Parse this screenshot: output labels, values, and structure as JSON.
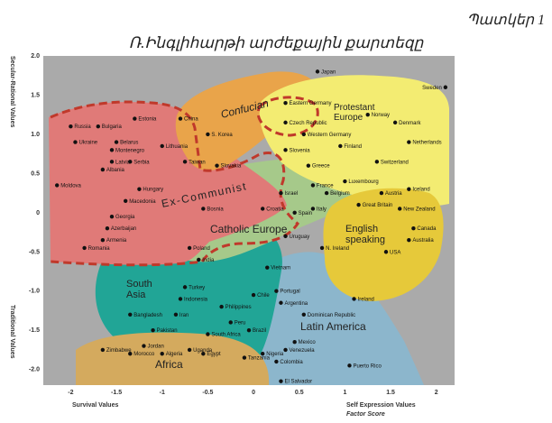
{
  "figure_label": "Պատկեր 1",
  "title": "Ռ.Ինգլիհարթի արժեքային քարտեզը",
  "chart_data": {
    "type": "scatter",
    "xlabel": "Survival Values",
    "xlabel_right": "Self Expression Values",
    "xlabel_right_sub": "Factor Score",
    "ylabel_top": "Secular-Rational Values",
    "ylabel_bottom": "Traditional Values",
    "xlim": [
      -2.3,
      2.2
    ],
    "ylim": [
      -2.2,
      2.0
    ],
    "x_ticks": [
      "-2",
      "-1.5",
      "-1",
      "-0.5",
      "0",
      "0.5",
      "1",
      "1.5",
      "2"
    ],
    "y_ticks": [
      "2.0",
      "1.5",
      "1.0",
      "0.5",
      "0",
      "-0.5",
      "-1.0",
      "-1.5",
      "-2.0"
    ],
    "zones": [
      {
        "label": "Confucian",
        "color": "#e9a44a"
      },
      {
        "label": "Protestant Europe",
        "color": "#f3ec72"
      },
      {
        "label": "Ex-Communist",
        "color": "#e07a78"
      },
      {
        "label": "Catholic Europe",
        "color": "#a6c98a"
      },
      {
        "label": "English speaking",
        "color": "#e6c93a"
      },
      {
        "label": "South Asia",
        "color": "#21a596"
      },
      {
        "label": "Latin America",
        "color": "#8cb6cc"
      },
      {
        "label": "Africa",
        "color": "#d4aa5e"
      }
    ],
    "points": [
      {
        "label": "Japan",
        "x": 0.7,
        "y": 1.8
      },
      {
        "label": "Sweden",
        "x": 2.1,
        "y": 1.6
      },
      {
        "label": "Russia",
        "x": -2.0,
        "y": 1.1
      },
      {
        "label": "Bulgaria",
        "x": -1.7,
        "y": 1.1
      },
      {
        "label": "Estonia",
        "x": -1.3,
        "y": 1.2
      },
      {
        "label": "China",
        "x": -0.8,
        "y": 1.2
      },
      {
        "label": "Belarus",
        "x": -1.5,
        "y": 0.9
      },
      {
        "label": "Ukraine",
        "x": -1.95,
        "y": 0.9
      },
      {
        "label": "Montenegro",
        "x": -1.55,
        "y": 0.8
      },
      {
        "label": "Latvia",
        "x": -1.55,
        "y": 0.65
      },
      {
        "label": "Albania",
        "x": -1.65,
        "y": 0.55
      },
      {
        "label": "Serbia",
        "x": -1.35,
        "y": 0.65
      },
      {
        "label": "Lithuania",
        "x": -1.0,
        "y": 0.85
      },
      {
        "label": "S. Korea",
        "x": -0.5,
        "y": 1.0
      },
      {
        "label": "Taiwan",
        "x": -0.75,
        "y": 0.65
      },
      {
        "label": "Moldova",
        "x": -2.15,
        "y": 0.35
      },
      {
        "label": "Slovakia",
        "x": -0.4,
        "y": 0.6
      },
      {
        "label": "Hungary",
        "x": -1.25,
        "y": 0.3
      },
      {
        "label": "Macedonia",
        "x": -1.4,
        "y": 0.15
      },
      {
        "label": "Bosnia",
        "x": -0.55,
        "y": 0.05
      },
      {
        "label": "Georgia",
        "x": -1.55,
        "y": -0.05
      },
      {
        "label": "Azerbaijan",
        "x": -1.6,
        "y": -0.2
      },
      {
        "label": "Armenia",
        "x": -1.65,
        "y": -0.35
      },
      {
        "label": "Romania",
        "x": -1.85,
        "y": -0.45
      },
      {
        "label": "Eastern Germany",
        "x": 0.35,
        "y": 1.4
      },
      {
        "label": "Czech Republic",
        "x": 0.35,
        "y": 1.15
      },
      {
        "label": "Western Germany",
        "x": 0.55,
        "y": 1.0
      },
      {
        "label": "Norway",
        "x": 1.25,
        "y": 1.25
      },
      {
        "label": "Denmark",
        "x": 1.55,
        "y": 1.15
      },
      {
        "label": "Netherlands",
        "x": 1.7,
        "y": 0.9
      },
      {
        "label": "Finland",
        "x": 0.95,
        "y": 0.85
      },
      {
        "label": "Slovenia",
        "x": 0.35,
        "y": 0.8
      },
      {
        "label": "Switzerland",
        "x": 1.35,
        "y": 0.65
      },
      {
        "label": "Greece",
        "x": 0.6,
        "y": 0.6
      },
      {
        "label": "France",
        "x": 0.65,
        "y": 0.35
      },
      {
        "label": "Luxembourg",
        "x": 1.0,
        "y": 0.4
      },
      {
        "label": "Belgium",
        "x": 0.8,
        "y": 0.25
      },
      {
        "label": "Austria",
        "x": 1.4,
        "y": 0.25
      },
      {
        "label": "Iceland",
        "x": 1.7,
        "y": 0.3
      },
      {
        "label": "Israel",
        "x": 0.3,
        "y": 0.25
      },
      {
        "label": "Italy",
        "x": 0.65,
        "y": 0.05
      },
      {
        "label": "Croatia",
        "x": 0.1,
        "y": 0.05
      },
      {
        "label": "Spain",
        "x": 0.45,
        "y": 0.0
      },
      {
        "label": "Great Britain",
        "x": 1.15,
        "y": 0.1
      },
      {
        "label": "New Zealand",
        "x": 1.6,
        "y": 0.05
      },
      {
        "label": "Canada",
        "x": 1.75,
        "y": -0.2
      },
      {
        "label": "Australia",
        "x": 1.7,
        "y": -0.35
      },
      {
        "label": "USA",
        "x": 1.45,
        "y": -0.5
      },
      {
        "label": "N. Ireland",
        "x": 0.75,
        "y": -0.45
      },
      {
        "label": "Uruguay",
        "x": 0.35,
        "y": -0.3
      },
      {
        "label": "Poland",
        "x": -0.7,
        "y": -0.45
      },
      {
        "label": "India",
        "x": -0.6,
        "y": -0.6
      },
      {
        "label": "Vietnam",
        "x": 0.15,
        "y": -0.7
      },
      {
        "label": "Ireland",
        "x": 1.1,
        "y": -1.1
      },
      {
        "label": "Turkey",
        "x": -0.75,
        "y": -0.95
      },
      {
        "label": "Indonesia",
        "x": -0.8,
        "y": -1.1
      },
      {
        "label": "Chile",
        "x": 0.0,
        "y": -1.05
      },
      {
        "label": "Portugal",
        "x": 0.25,
        "y": -1.0
      },
      {
        "label": "Argentina",
        "x": 0.3,
        "y": -1.15
      },
      {
        "label": "Philippines",
        "x": -0.35,
        "y": -1.2
      },
      {
        "label": "Bangladesh",
        "x": -1.35,
        "y": -1.3
      },
      {
        "label": "Iran",
        "x": -0.85,
        "y": -1.3
      },
      {
        "label": "Peru",
        "x": -0.25,
        "y": -1.4
      },
      {
        "label": "Dominican Republic",
        "x": 0.55,
        "y": -1.3
      },
      {
        "label": "Pakistan",
        "x": -1.1,
        "y": -1.5
      },
      {
        "label": "South Africa",
        "x": -0.5,
        "y": -1.55
      },
      {
        "label": "Brazil",
        "x": -0.05,
        "y": -1.5
      },
      {
        "label": "Mexico",
        "x": 0.45,
        "y": -1.65
      },
      {
        "label": "Zimbabwe",
        "x": -1.65,
        "y": -1.75
      },
      {
        "label": "Jordan",
        "x": -1.2,
        "y": -1.7
      },
      {
        "label": "Morocco",
        "x": -1.35,
        "y": -1.8
      },
      {
        "label": "Uganda",
        "x": -0.7,
        "y": -1.75
      },
      {
        "label": "Algeria",
        "x": -1.0,
        "y": -1.8
      },
      {
        "label": "Egypt",
        "x": -0.55,
        "y": -1.8
      },
      {
        "label": "Nigeria",
        "x": 0.1,
        "y": -1.8
      },
      {
        "label": "Tanzania",
        "x": -0.1,
        "y": -1.85
      },
      {
        "label": "Venezuela",
        "x": 0.35,
        "y": -1.75
      },
      {
        "label": "Colombia",
        "x": 0.25,
        "y": -1.9
      },
      {
        "label": "Puerto Rico",
        "x": 1.05,
        "y": -1.95
      },
      {
        "label": "El Salvador",
        "x": 0.3,
        "y": -2.15
      }
    ]
  }
}
